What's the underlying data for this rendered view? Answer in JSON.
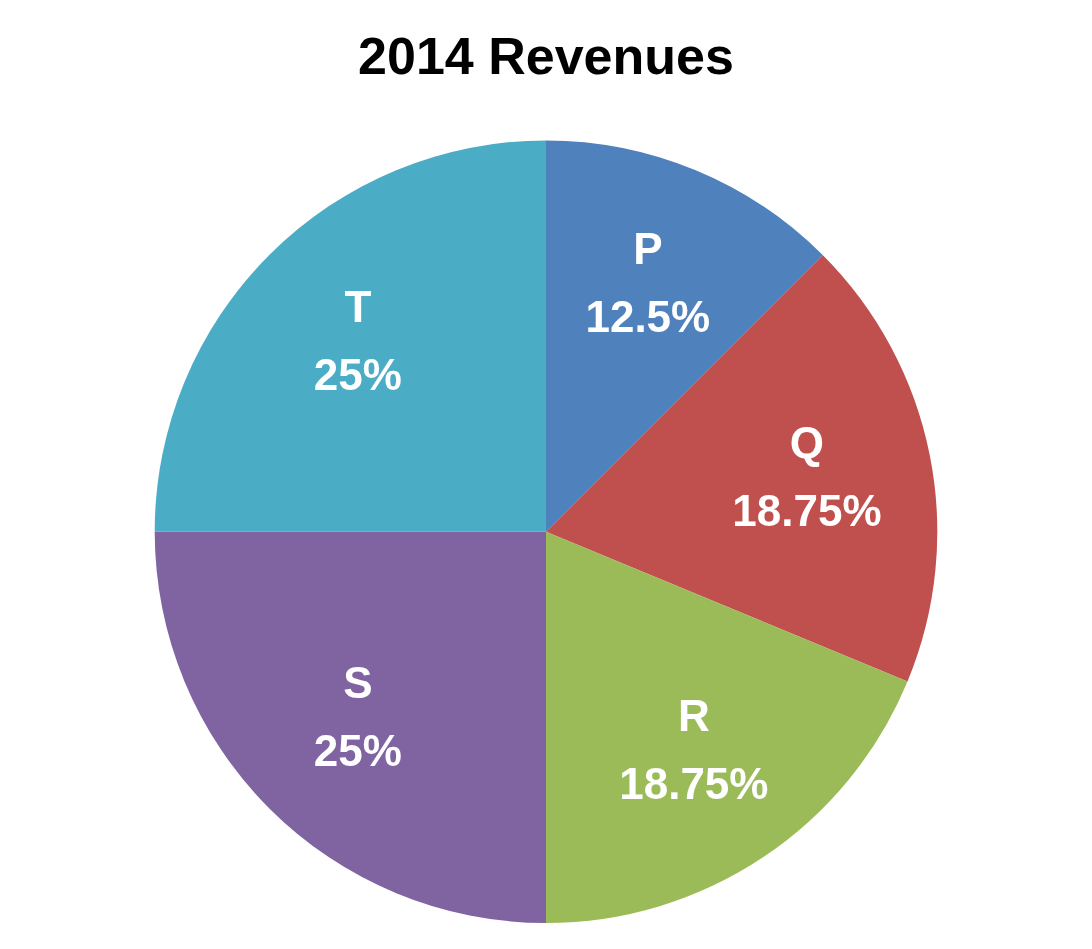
{
  "chart_data": {
    "type": "pie",
    "title": "2014 Revenues",
    "categories": [
      "P",
      "Q",
      "R",
      "S",
      "T"
    ],
    "values": [
      12.5,
      18.75,
      18.75,
      25,
      25
    ],
    "colors": [
      "#4f81bd",
      "#c0504d",
      "#9bbb59",
      "#8064a2",
      "#4bacc6"
    ],
    "value_labels": [
      "12.5%",
      "18.75%",
      "18.75%",
      "25%",
      "25%"
    ],
    "legend": false
  }
}
